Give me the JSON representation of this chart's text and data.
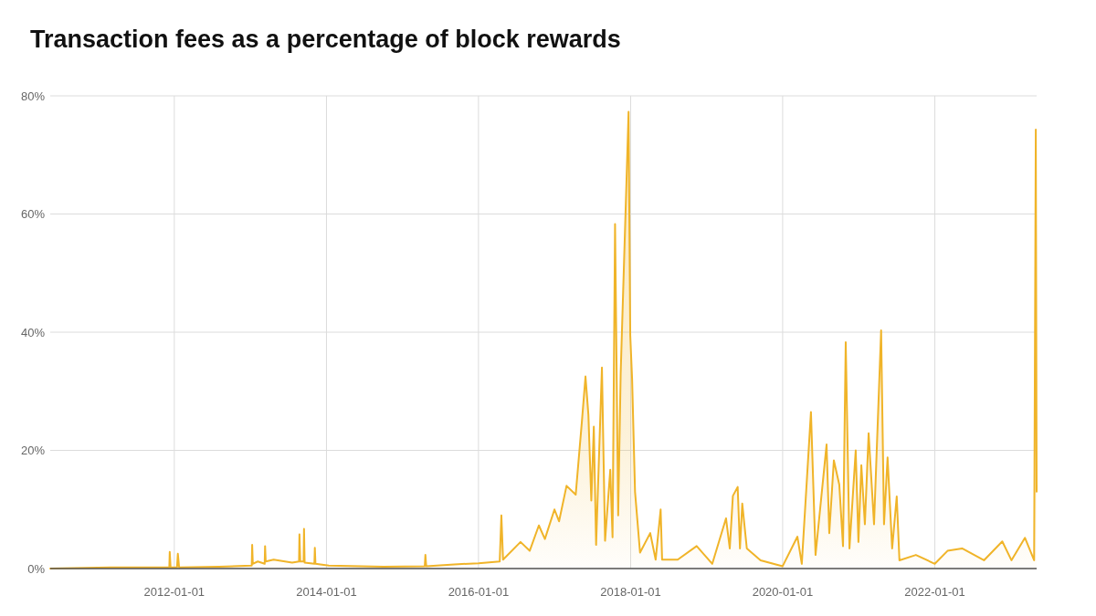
{
  "chart_data": {
    "type": "area",
    "title": "Transaction fees as a percentage of block rewards",
    "x": [
      "2010-05-15",
      "2011-02-25",
      "2011-12-08",
      "2011-12-10",
      "2011-12-14",
      "2012-01-14",
      "2012-01-18",
      "2012-01-24",
      "2012-08-03",
      "2013-01-07",
      "2013-01-09",
      "2013-01-12",
      "2013-02-05",
      "2013-03-10",
      "2013-03-12",
      "2013-03-15",
      "2013-04-22",
      "2013-07-20",
      "2013-08-22",
      "2013-08-24",
      "2013-08-28",
      "2013-09-13",
      "2013-09-15",
      "2013-09-18",
      "2013-11-04",
      "2013-11-06",
      "2013-11-09",
      "2014-01-12",
      "2014-10-02",
      "2015-04-18",
      "2015-04-21",
      "2015-04-25",
      "2015-09-07",
      "2016-01-01",
      "2016-04-12",
      "2016-04-20",
      "2016-04-28",
      "2016-07-21",
      "2016-09-03",
      "2016-10-17",
      "2016-11-15",
      "2016-12-31",
      "2017-01-22",
      "2017-02-27",
      "2017-04-12",
      "2017-05-12",
      "2017-05-29",
      "2017-06-12",
      "2017-06-26",
      "2017-07-08",
      "2017-07-19",
      "2017-08-16",
      "2017-08-31",
      "2017-09-25",
      "2017-10-06",
      "2017-10-18",
      "2017-11-02",
      "2017-11-14",
      "2017-12-22",
      "2017-12-30",
      "2018-01-08",
      "2018-01-22",
      "2018-02-15",
      "2018-04-05",
      "2018-05-01",
      "2018-05-25",
      "2018-06-01",
      "2018-08-15",
      "2018-11-14",
      "2019-01-28",
      "2019-04-04",
      "2019-04-22",
      "2019-05-07",
      "2019-05-30",
      "2019-06-10",
      "2019-06-21",
      "2019-07-13",
      "2019-09-17",
      "2020-01-01",
      "2020-03-12",
      "2020-04-02",
      "2020-05-16",
      "2020-06-07",
      "2020-07-30",
      "2020-08-12",
      "2020-09-03",
      "2020-09-29",
      "2020-10-17",
      "2020-10-30",
      "2020-11-17",
      "2020-12-17",
      "2020-12-30",
      "2021-01-13",
      "2021-01-30",
      "2021-02-17",
      "2021-03-15",
      "2021-04-18",
      "2021-05-02",
      "2021-05-19",
      "2021-06-10",
      "2021-07-02",
      "2021-07-15",
      "2021-10-02",
      "2022-01-01",
      "2022-03-03",
      "2022-05-12",
      "2022-08-25",
      "2022-11-21",
      "2023-01-04",
      "2023-03-10",
      "2023-04-23",
      "2023-05-01",
      "2023-05-05"
    ],
    "series": [
      {
        "color": "#f0b429",
        "values": [
          0,
          0.2,
          0.2,
          2.8,
          0.2,
          0.2,
          2.5,
          0.2,
          0.3,
          0.5,
          4,
          0.8,
          1.2,
          0.8,
          3.8,
          1.2,
          1.5,
          1,
          1.2,
          5.8,
          1.2,
          1.2,
          6.7,
          1,
          0.8,
          3.5,
          0.8,
          0.5,
          0.3,
          0.4,
          2.3,
          0.4,
          0.7,
          0.9,
          1.2,
          9,
          1.5,
          4.5,
          3,
          7.3,
          5,
          10,
          8,
          14,
          12.5,
          25,
          32.5,
          26,
          11.5,
          24,
          4,
          34,
          4.7,
          16.7,
          5.3,
          58.3,
          9,
          33,
          77.3,
          39.5,
          32,
          13,
          2.7,
          6,
          1.5,
          10,
          1.5,
          1.5,
          3.8,
          0.8,
          8.5,
          3.4,
          12.3,
          13.8,
          3.4,
          11,
          3.4,
          1.4,
          0.4,
          5.4,
          0.8,
          26.5,
          2.3,
          21,
          6,
          18.3,
          14.2,
          3.8,
          38.3,
          3.4,
          20,
          4.5,
          17.5,
          7.5,
          22.9,
          7.5,
          40.3,
          7.5,
          18.8,
          3.4,
          12.2,
          1.4,
          2.3,
          0.8,
          3,
          3.4,
          1.4,
          4.6,
          1.4,
          5.2,
          1.4,
          74.3,
          13
        ]
      }
    ],
    "xlim": [
      "2010-05-15",
      "2023-05-05"
    ],
    "xticks": [
      "2012-01-01",
      "2014-01-01",
      "2016-01-01",
      "2018-01-01",
      "2020-01-01",
      "2022-01-01"
    ],
    "ylim": [
      0,
      80
    ],
    "yticks": [
      {
        "value": 0,
        "label": "0%"
      },
      {
        "value": 20,
        "label": "20%"
      },
      {
        "value": 40,
        "label": "40%"
      },
      {
        "value": 60,
        "label": "60%"
      },
      {
        "value": 80,
        "label": "80%"
      }
    ],
    "grid": true
  }
}
